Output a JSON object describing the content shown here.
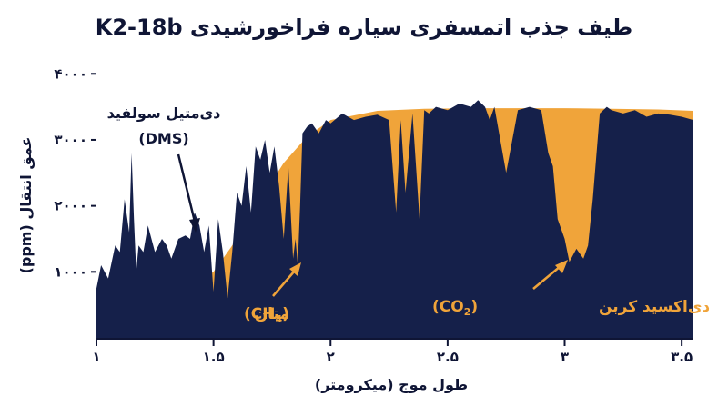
{
  "chart_data": {
    "type": "area",
    "title": "طیف جذب اتمسفری سیاره فراخورشیدی K2-18b",
    "xlabel": "طول موج (میکرومتر)",
    "ylabel": "عمق انتقال (ppm)",
    "x_ticks": [
      "۱",
      "۱.۵",
      "۲",
      "۲.۵",
      "۳",
      "۳.۵"
    ],
    "y_ticks": [
      "۱۰۰۰",
      "۲۰۰۰",
      "۳۰۰۰",
      "۴۰۰۰"
    ],
    "xlim": [
      1.0,
      3.55
    ],
    "ylim": [
      0,
      4100
    ],
    "colors": {
      "model": "#f0a43a",
      "data": "#15204a",
      "text": "#0f1535",
      "accent_text": "#f0a43a"
    },
    "series": [
      {
        "role": "model-envelope",
        "x": [
          1.0,
          1.2,
          1.3,
          1.4,
          1.5,
          1.6,
          1.7,
          1.8,
          1.9,
          2.0,
          2.2,
          2.4,
          2.6,
          2.8,
          3.0,
          3.2,
          3.4,
          3.55
        ],
        "y": [
          500,
          560,
          640,
          750,
          1000,
          1500,
          2100,
          2650,
          3050,
          3300,
          3440,
          3470,
          3480,
          3480,
          3480,
          3470,
          3460,
          3440
        ]
      },
      {
        "role": "observed-spectrum",
        "x": [
          1.0,
          1.02,
          1.05,
          1.08,
          1.1,
          1.12,
          1.14,
          1.15,
          1.16,
          1.17,
          1.18,
          1.2,
          1.22,
          1.25,
          1.28,
          1.3,
          1.32,
          1.35,
          1.38,
          1.4,
          1.42,
          1.44,
          1.46,
          1.48,
          1.5,
          1.52,
          1.54,
          1.56,
          1.58,
          1.6,
          1.62,
          1.64,
          1.66,
          1.68,
          1.7,
          1.72,
          1.74,
          1.76,
          1.78,
          1.8,
          1.82,
          1.84,
          1.85,
          1.86,
          1.87,
          1.88,
          1.9,
          1.92,
          1.95,
          1.98,
          2.0,
          2.05,
          2.1,
          2.15,
          2.2,
          2.25,
          2.28,
          2.3,
          2.32,
          2.35,
          2.38,
          2.4,
          2.42,
          2.45,
          2.5,
          2.55,
          2.6,
          2.63,
          2.66,
          2.68,
          2.7,
          2.75,
          2.8,
          2.85,
          2.9,
          2.93,
          2.95,
          2.97,
          3.0,
          3.02,
          3.05,
          3.08,
          3.1,
          3.12,
          3.15,
          3.18,
          3.2,
          3.25,
          3.3,
          3.35,
          3.4,
          3.45,
          3.5,
          3.55
        ],
        "y": [
          750,
          1100,
          900,
          1400,
          1300,
          2100,
          1600,
          2800,
          1800,
          1000,
          1400,
          1300,
          1700,
          1300,
          1500,
          1400,
          1200,
          1500,
          1550,
          1500,
          1900,
          1700,
          1300,
          1700,
          700,
          1800,
          1300,
          600,
          1300,
          2200,
          2000,
          2600,
          1900,
          2900,
          2700,
          3000,
          2500,
          2900,
          2300,
          1500,
          2600,
          1200,
          1500,
          1100,
          2000,
          3100,
          3200,
          3250,
          3100,
          3300,
          3250,
          3400,
          3300,
          3350,
          3380,
          3300,
          1900,
          3300,
          2200,
          3400,
          1800,
          3450,
          3400,
          3500,
          3450,
          3550,
          3500,
          3600,
          3500,
          3300,
          3500,
          2500,
          3450,
          3500,
          3450,
          2800,
          2600,
          1800,
          1500,
          1150,
          1350,
          1200,
          1400,
          2100,
          3400,
          3500,
          3450,
          3400,
          3450,
          3350,
          3400,
          3380,
          3350,
          3300
        ]
      }
    ],
    "annotations": {
      "dms_line1": "دی‌متیل سولفید",
      "dms_line2": "(DMS)",
      "methane_label": "متان",
      "methane_formula": "(CH",
      "methane_sub": "4",
      "methane_close": ")",
      "co2_label": "دی‌اکسید کربن",
      "co2_formula": "(CO",
      "co2_sub": "2",
      "co2_close": ")"
    }
  }
}
